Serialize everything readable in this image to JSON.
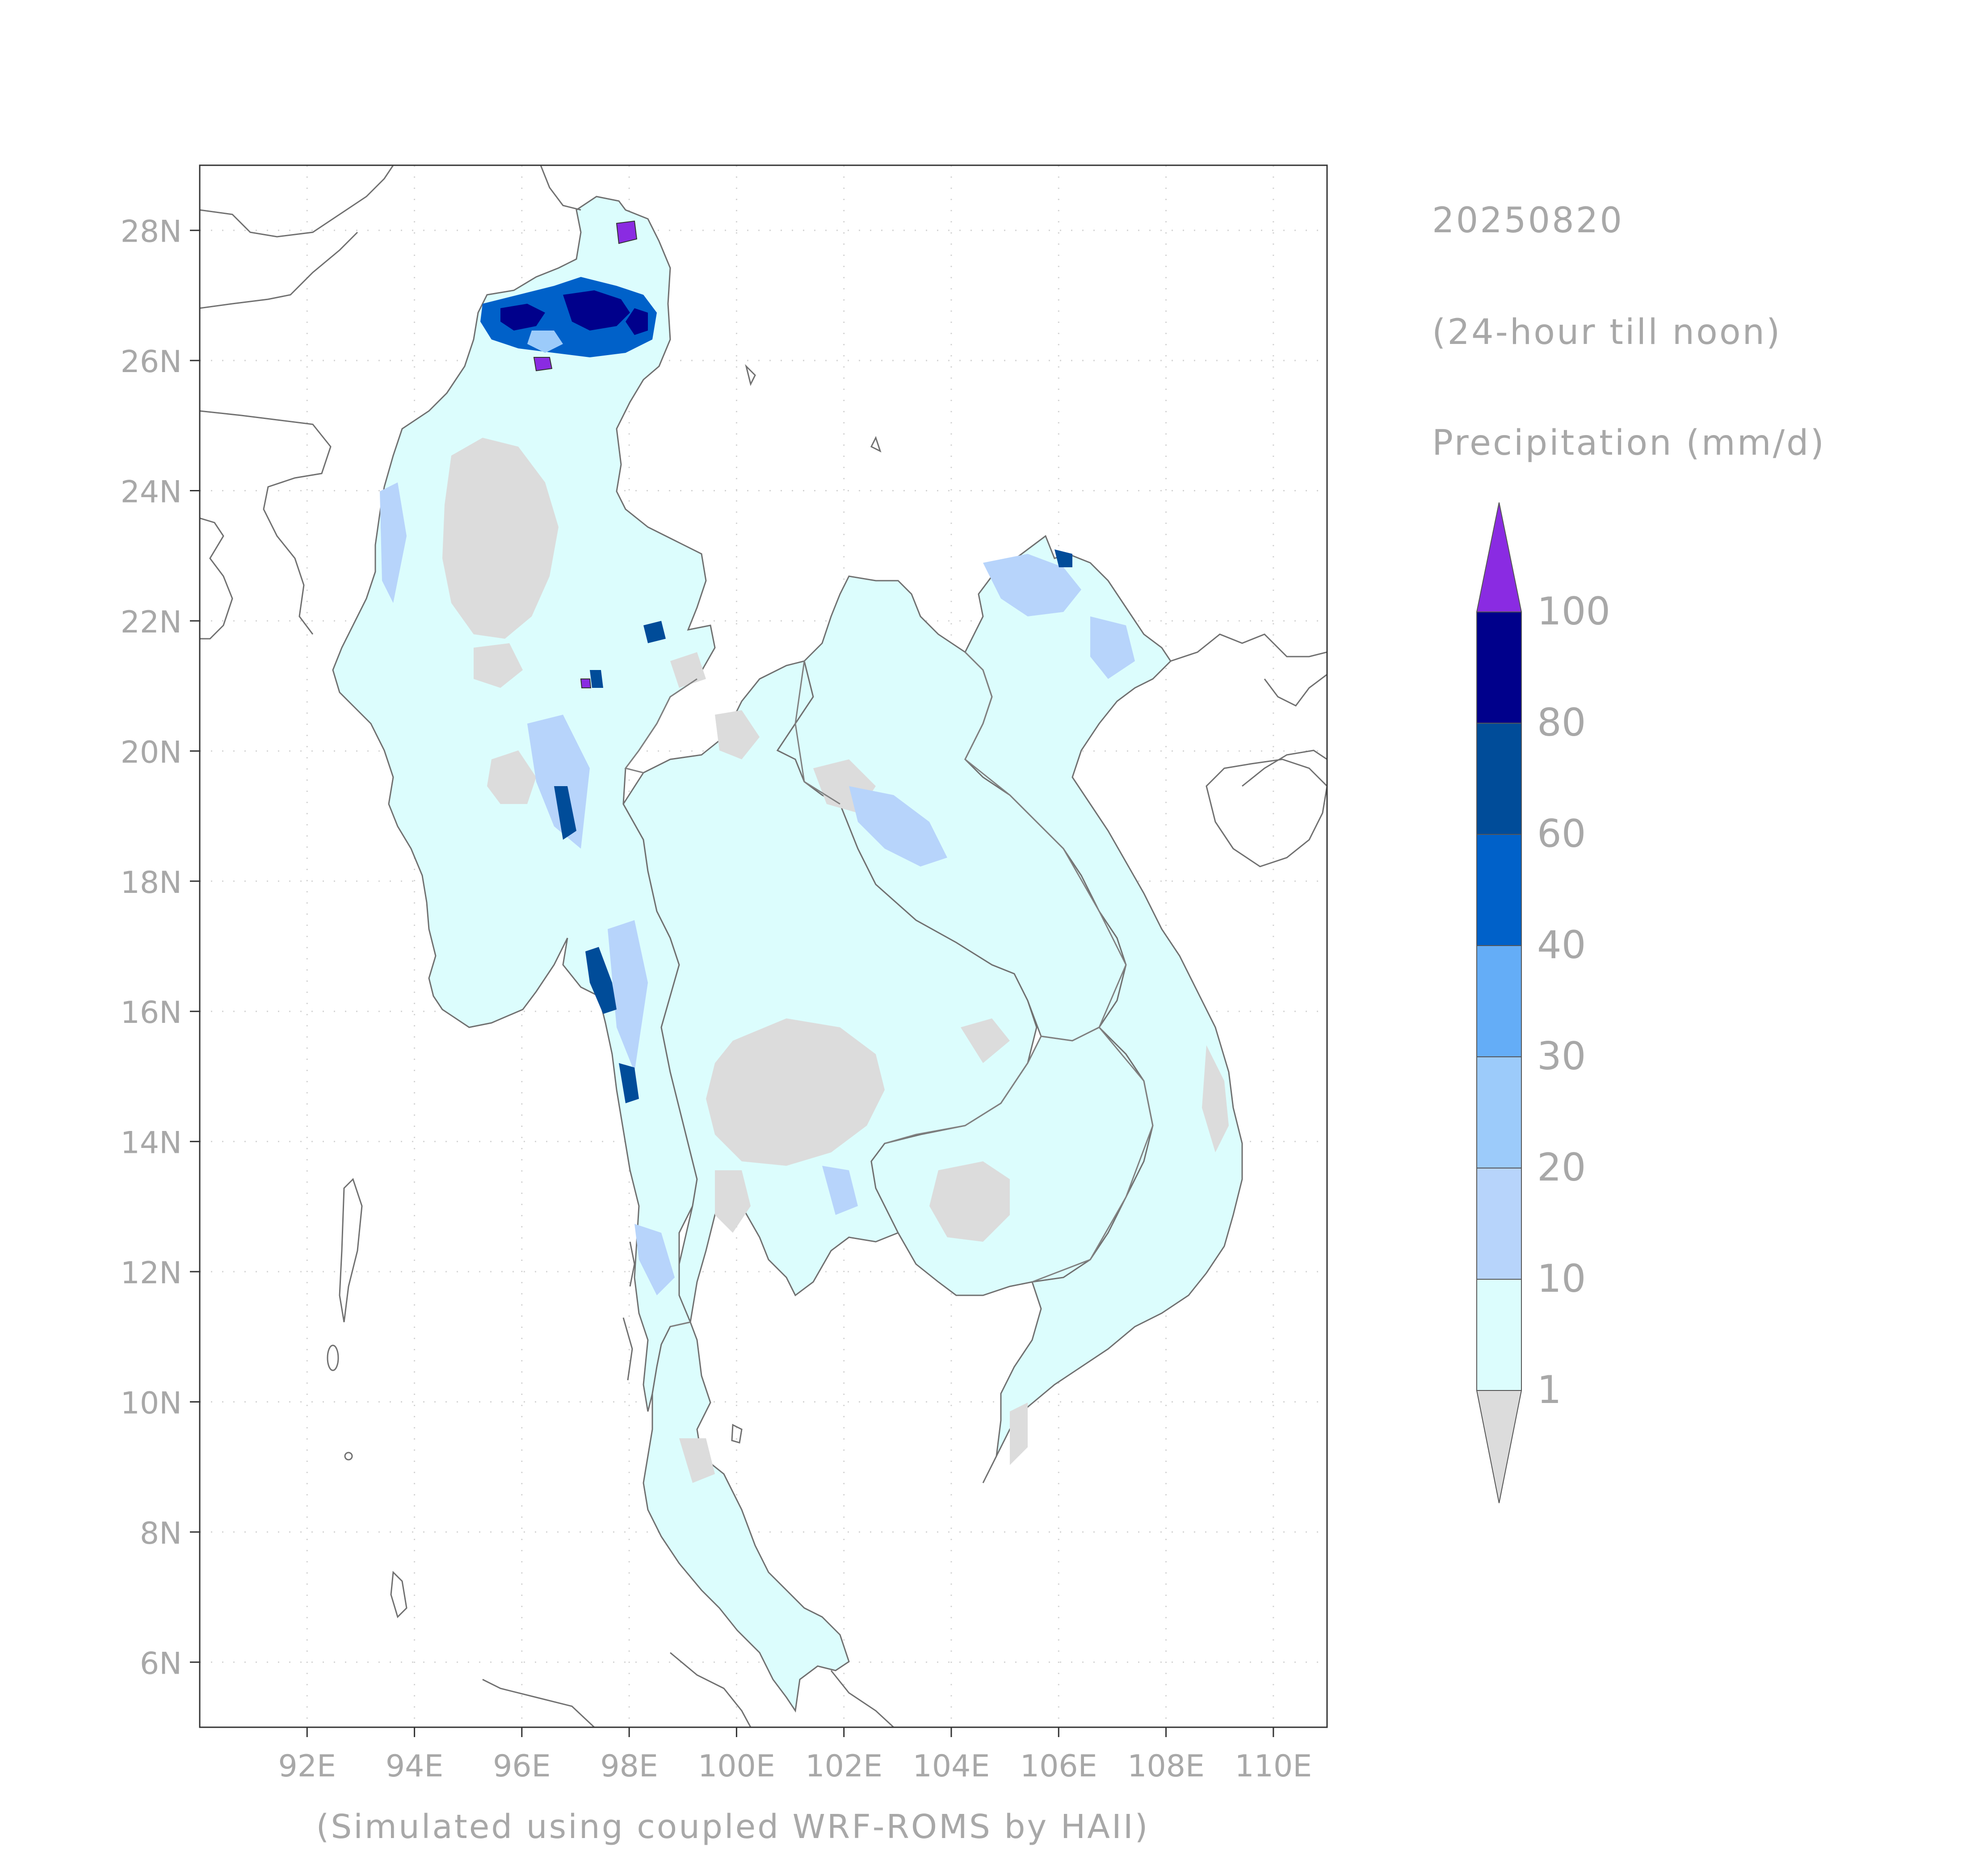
{
  "map": {
    "date": "20250820",
    "period": "(24-hour till noon)",
    "variable": "Precipitation (mm/d)",
    "credit": "(Simulated using coupled WRF-ROMS by HAII)",
    "lon_ticks": [
      "92E",
      "94E",
      "96E",
      "98E",
      "100E",
      "102E",
      "104E",
      "106E",
      "108E",
      "110E"
    ],
    "lat_ticks": [
      "28N",
      "26N",
      "24N",
      "22N",
      "20N",
      "18N",
      "16N",
      "14N",
      "12N",
      "10N",
      "8N",
      "6N"
    ],
    "lon_values": [
      92,
      94,
      96,
      98,
      100,
      102,
      104,
      106,
      108,
      110
    ],
    "lat_values": [
      28,
      26,
      24,
      22,
      20,
      18,
      16,
      14,
      12,
      10,
      8,
      6
    ]
  },
  "legend": {
    "levels": [
      "100",
      "80",
      "60",
      "40",
      "30",
      "20",
      "10",
      "1"
    ],
    "colors": {
      "over_100": "#8a2be2",
      "80_100": "#00008b",
      "60_80": "#004c99",
      "40_60": "#0061c9",
      "30_40": "#64adf7",
      "20_30": "#9ccbfa",
      "10_20": "#b7d4fb",
      "1_10": "#dcfdfd",
      "under_1": "#dcdcdc"
    }
  },
  "colors": {
    "coastline": "#707070",
    "frame": "#333333",
    "grid": "#d4d4d4",
    "label": "#a8a8a8"
  }
}
